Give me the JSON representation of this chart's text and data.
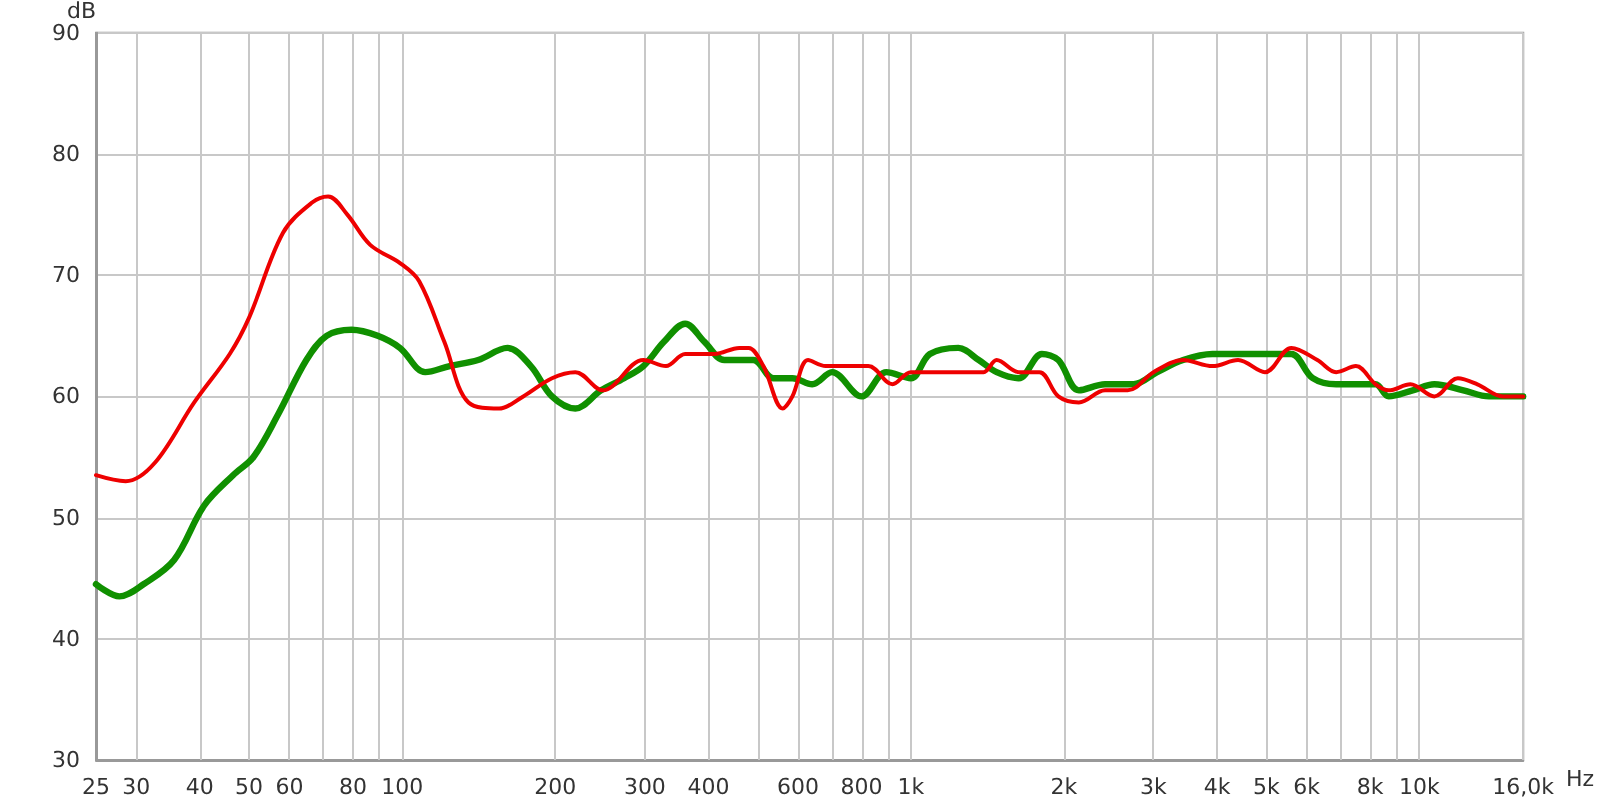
{
  "chart_data": {
    "type": "line",
    "xlabel": "Hz",
    "ylabel": "dB",
    "log": "x",
    "grid": true,
    "line_style": "solid",
    "marker": "none",
    "xlim": [
      25,
      16000
    ],
    "ylim": [
      30,
      90
    ],
    "yticks": [
      30,
      40,
      50,
      60,
      70,
      80,
      90
    ],
    "xticks": [
      25,
      30,
      40,
      50,
      60,
      {
        "value": 70,
        "label": null
      },
      80,
      {
        "value": 90,
        "label": null
      },
      100,
      200,
      300,
      400,
      {
        "value": 500,
        "label": null
      },
      600,
      {
        "value": 700,
        "label": null
      },
      800,
      {
        "value": 900,
        "label": null
      },
      {
        "value": 1000,
        "label": "1k"
      },
      {
        "value": 2000,
        "label": "2k"
      },
      {
        "value": 3000,
        "label": "3k"
      },
      {
        "value": 4000,
        "label": "4k"
      },
      {
        "value": 5000,
        "label": "5k"
      },
      {
        "value": 6000,
        "label": "6k"
      },
      {
        "value": 7000,
        "label": null
      },
      {
        "value": 8000,
        "label": "8k"
      },
      {
        "value": 9000,
        "label": null
      },
      {
        "value": 10000,
        "label": "10k"
      },
      {
        "value": 16000,
        "label": "16,0k"
      }
    ],
    "series": [
      {
        "color": "#ee0000",
        "x": [
          25,
          28.6,
          32.6,
          39,
          45.8,
          50,
          58.3,
          66.5,
          71.5,
          78,
          86.5,
          99,
          108,
          121,
          135,
          155,
          173,
          197,
          219,
          248,
          298,
          330,
          360,
          411,
          460,
          480,
          513,
          560,
          585,
          628,
          680,
          730,
          825,
          920,
          1000,
          1090,
          1240,
          1390,
          1475,
          1630,
          1790,
          1950,
          2140,
          2410,
          2670,
          3000,
          3430,
          3920,
          4400,
          4970,
          5600,
          6300,
          6860,
          7500,
          8200,
          8700,
          9600,
          10700,
          11900,
          13000,
          14600,
          16000
        ],
        "values": [
          53.5,
          53,
          54.5,
          59.5,
          63.5,
          66.5,
          73.5,
          76,
          76.5,
          75,
          72.5,
          71,
          69.5,
          64.5,
          59.5,
          59,
          60,
          61.5,
          62,
          60.5,
          63,
          62.5,
          63.5,
          63.5,
          64,
          64,
          62.5,
          59,
          60,
          63,
          62.5,
          62.5,
          62.5,
          61,
          62,
          62,
          62,
          62,
          63,
          62,
          62,
          60,
          59.5,
          60.5,
          60.5,
          62,
          63,
          62.5,
          63,
          62,
          64,
          63,
          62,
          62.5,
          61,
          60.5,
          61,
          60,
          61.5,
          61,
          60,
          60
        ]
      },
      {
        "color": "#109000",
        "x": [
          25,
          27.8,
          31,
          35.6,
          40.8,
          46.5,
          51,
          57,
          64.8,
          71,
          79.5,
          89.5,
          99,
          111,
          124,
          141,
          161,
          179,
          197,
          219,
          246,
          273,
          298,
          327,
          360,
          393,
          430,
          490,
          537,
          585,
          640,
          700,
          800,
          895,
          1000,
          1090,
          1240,
          1360,
          1475,
          1630,
          1810,
          1950,
          2140,
          2410,
          2740,
          3050,
          3430,
          3920,
          4500,
          5100,
          5600,
          6170,
          6860,
          7500,
          8200,
          8700,
          9700,
          10700,
          12200,
          13700,
          16000
        ],
        "values": [
          44.5,
          43.5,
          44.5,
          46.5,
          51,
          53.5,
          55,
          58.5,
          63,
          65,
          65.5,
          65,
          64,
          62,
          62.5,
          63,
          64,
          62.5,
          60,
          59,
          60.5,
          61.5,
          62.5,
          64.5,
          66,
          64.5,
          63,
          63,
          61.5,
          61.5,
          61,
          62,
          60,
          62,
          61.5,
          63.5,
          64,
          63,
          62,
          61.5,
          63.5,
          63,
          60.5,
          61,
          61,
          62,
          63,
          63.5,
          63.5,
          63.5,
          63.5,
          61.5,
          61,
          61,
          61,
          60,
          60.5,
          61,
          60.5,
          60,
          60
        ]
      }
    ]
  }
}
